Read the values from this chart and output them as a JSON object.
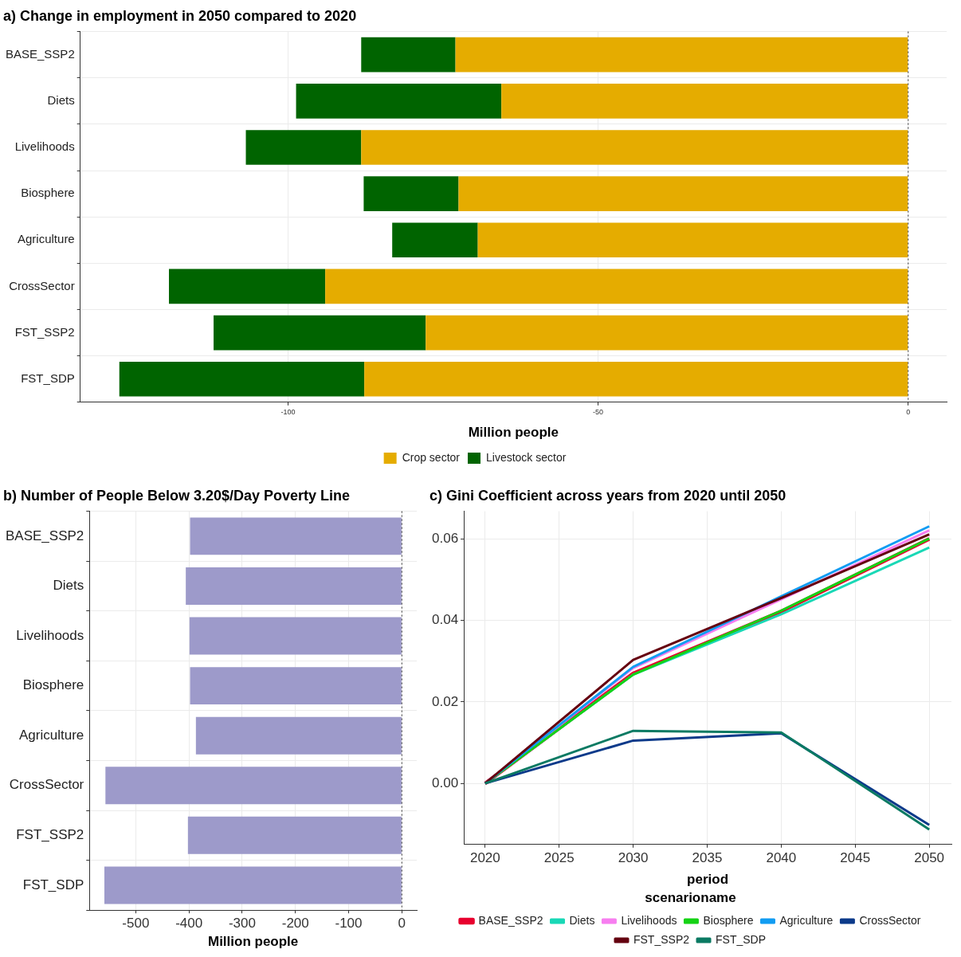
{
  "chart_data": [
    {
      "type": "bar",
      "title": "a) Change in employment in 2050 compared to 2020",
      "xlabel": "Million people",
      "orientation": "horizontal",
      "stacked": true,
      "categories": [
        "BASE_SSP2",
        "Diets",
        "Livelihoods",
        "Biosphere",
        "Agriculture",
        "CrossSector",
        "FST_SSP2",
        "FST_SDP"
      ],
      "series": [
        {
          "name": "Crop sector",
          "color": "#e5ac00",
          "values": [
            -73.0,
            -65.6,
            -88.2,
            -72.5,
            -69.4,
            -94.0,
            -77.8,
            -87.7
          ]
        },
        {
          "name": "Livestock sector",
          "color": "#006400",
          "values": [
            -15.2,
            -33.1,
            -18.6,
            -15.3,
            -13.8,
            -25.2,
            -34.2,
            -39.5
          ]
        }
      ],
      "xlim": [
        -133.5,
        6.2
      ],
      "xticks": [
        -100,
        -50,
        0
      ],
      "grid": true,
      "legend": "bottom",
      "ref_lines": [
        {
          "axis": "x",
          "value": 0,
          "line_style": "dotted",
          "color": "#333333"
        }
      ]
    },
    {
      "type": "bar",
      "title": "b) Number of People Below 3.20$/Day Poverty Line",
      "xlabel": "Million people",
      "orientation": "horizontal",
      "categories": [
        "BASE_SSP2",
        "Diets",
        "Livelihoods",
        "Biosphere",
        "Agriculture",
        "CrossSector",
        "FST_SSP2",
        "FST_SDP"
      ],
      "series": [
        {
          "color": "#9d9aca",
          "values": [
            -398,
            -406,
            -399,
            -398,
            -387,
            -557,
            -402,
            -559
          ]
        }
      ],
      "xlim": [
        -587,
        28
      ],
      "xticks": [
        -500,
        -400,
        -300,
        -200,
        -100,
        0
      ],
      "grid": true,
      "legend": false,
      "ref_lines": [
        {
          "axis": "x",
          "value": 0,
          "line_style": "dotted",
          "color": "#333333"
        }
      ]
    },
    {
      "type": "line",
      "title": "c) Gini Coefficient across years from 2020 until 2050",
      "xlabel": "period",
      "legend_title": "scenarioname",
      "x": [
        2020,
        2030,
        2040,
        2050
      ],
      "series": [
        {
          "name": "BASE_SSP2",
          "color": "#e8002e",
          "values": [
            0,
            0.027,
            0.0422,
            0.06
          ]
        },
        {
          "name": "Diets",
          "color": "#19d8b6",
          "values": [
            0,
            0.0267,
            0.0415,
            0.0579
          ]
        },
        {
          "name": "Livelihoods",
          "color": "#f77ef0",
          "values": [
            0,
            0.0283,
            0.0452,
            0.0621
          ]
        },
        {
          "name": "Biosphere",
          "color": "#15d315",
          "values": [
            0,
            0.0267,
            0.0424,
            0.0601
          ]
        },
        {
          "name": "Agriculture",
          "color": "#119cf2",
          "values": [
            0,
            0.0286,
            0.0459,
            0.0631
          ]
        },
        {
          "name": "CrossSector",
          "color": "#0c3a8a",
          "values": [
            0,
            0.0105,
            0.0123,
            -0.0102
          ]
        },
        {
          "name": "FST_SSP2",
          "color": "#650010",
          "values": [
            0,
            0.0303,
            0.0455,
            0.0611
          ]
        },
        {
          "name": "FST_SDP",
          "color": "#0b7a63",
          "values": [
            0,
            0.0129,
            0.0125,
            -0.0113
          ]
        }
      ],
      "xlim": [
        2018.56,
        2051.5
      ],
      "xticks": [
        2020,
        2025,
        2030,
        2035,
        2040,
        2045,
        2050
      ],
      "ylim": [
        -0.015,
        0.0668
      ],
      "yticks": [
        {
          "value": 0,
          "label": "0.00"
        },
        {
          "value": 0.02,
          "label": "0.02"
        },
        {
          "value": 0.04,
          "label": "0.04"
        },
        {
          "value": 0.06,
          "label": "0.06"
        }
      ],
      "grid": true,
      "legend": "bottom",
      "marker": "none",
      "line_style": "solid"
    }
  ]
}
